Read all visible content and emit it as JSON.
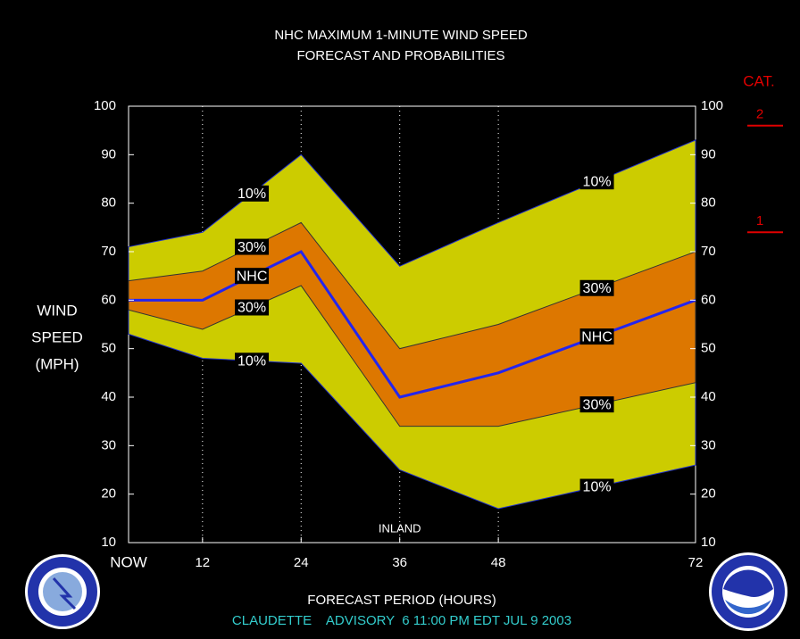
{
  "chart_data": {
    "type": "band-line",
    "title": [
      "NHC MAXIMUM 1-MINUTE WIND SPEED",
      "FORECAST AND PROBABILITIES"
    ],
    "ylabel": [
      "WIND",
      "SPEED",
      "(MPH)"
    ],
    "xlabel": "FORECAST PERIOD (HOURS)",
    "footer": "CLAUDETTE    ADVISORY  6 11:00 PM EDT JUL 9 2003",
    "annotation": {
      "text": "INLAND",
      "x": 36
    },
    "x": [
      3,
      12,
      24,
      36,
      48,
      72
    ],
    "xlim": [
      3,
      72
    ],
    "xticks": [
      {
        "value": 3,
        "label": "NOW"
      },
      12,
      24,
      36,
      48,
      72
    ],
    "ylim": [
      10,
      100
    ],
    "yticks": [
      10,
      20,
      30,
      40,
      50,
      60,
      70,
      80,
      90,
      100
    ],
    "bands": [
      {
        "name": "10%",
        "color": "#cccc00",
        "upper": [
          71,
          74,
          90,
          67,
          76,
          93
        ],
        "lower": [
          53,
          48,
          47,
          25,
          17,
          26
        ]
      },
      {
        "name": "30%",
        "color": "#dd7700",
        "upper": [
          64,
          66,
          76,
          50,
          55,
          70
        ],
        "lower": [
          58,
          54,
          63,
          34,
          34,
          43
        ]
      }
    ],
    "series": [
      {
        "name": "NHC",
        "color": "#2424ee",
        "values": [
          60,
          60,
          70,
          40,
          45,
          60
        ]
      }
    ],
    "category_scale": {
      "title": "CAT.",
      "color": "#e00000",
      "levels": [
        {
          "label": "2",
          "min": 96
        },
        {
          "label": "1",
          "min": 74
        }
      ]
    }
  }
}
